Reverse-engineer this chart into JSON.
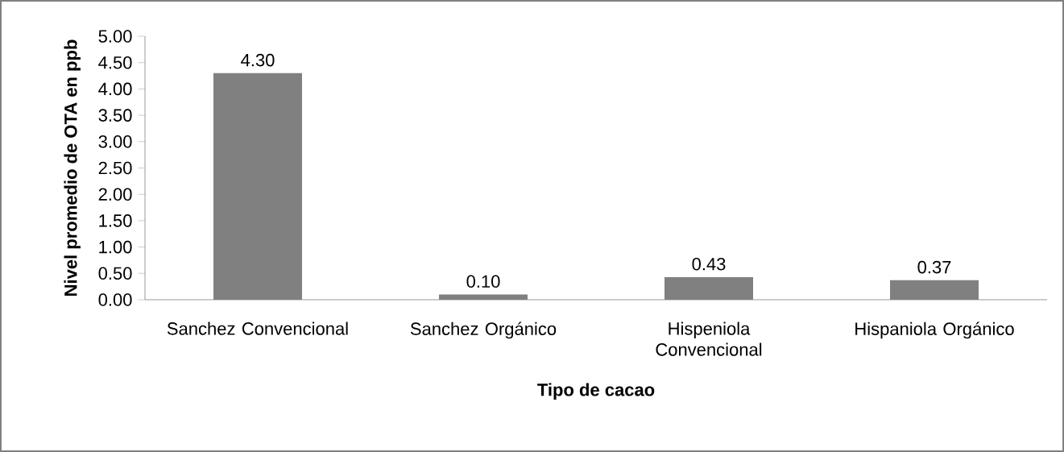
{
  "chart_data": {
    "type": "bar",
    "categories": [
      "Sanchez Convencional",
      "Sanchez Orgánico",
      "Hispeniola Convencional",
      "Hispaniola Orgánico"
    ],
    "values": [
      4.3,
      0.1,
      0.43,
      0.37
    ],
    "value_labels": [
      "4.30",
      "0.10",
      "0.43",
      "0.37"
    ],
    "color": "#808080",
    "xlabel": "Tipo de cacao",
    "ylabel": "Nivel promedio de OTA en ppb",
    "ylim": [
      0,
      5
    ],
    "yticks": [
      {
        "value": 0,
        "label": "0.00"
      },
      {
        "value": 0.5,
        "label": "0.50"
      },
      {
        "value": 1,
        "label": "1.00"
      },
      {
        "value": 1.5,
        "label": "1.50"
      },
      {
        "value": 2,
        "label": "2.00"
      },
      {
        "value": 2.5,
        "label": "2.50"
      },
      {
        "value": 3,
        "label": "3.00"
      },
      {
        "value": 3.5,
        "label": "3.50"
      },
      {
        "value": 4,
        "label": "4.00"
      },
      {
        "value": 4.5,
        "label": "4.50"
      },
      {
        "value": 5,
        "label": "5.00"
      }
    ],
    "grid": false
  }
}
